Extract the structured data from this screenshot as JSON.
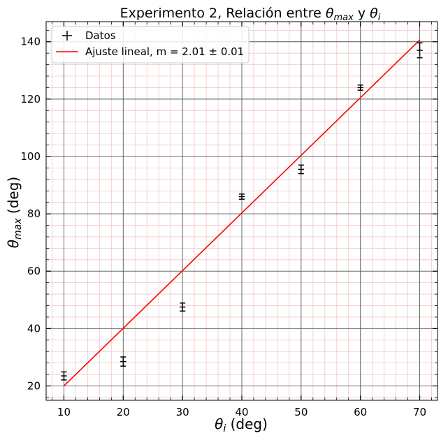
{
  "chart_data": {
    "type": "scatter",
    "title": {
      "prefix": "Experimento 2, Relación entre ",
      "sym1": "θ",
      "sub1": "max",
      "mid": " y ",
      "sym2": "θ",
      "sub2": "i"
    },
    "xlabel": {
      "sym": "θ",
      "sub": "i",
      "rest": " (deg)"
    },
    "ylabel": {
      "sym": "θ",
      "sub": "max",
      "rest": " (deg)"
    },
    "xlim": [
      7,
      73
    ],
    "ylim": [
      15,
      147
    ],
    "xticks": [
      10,
      20,
      30,
      40,
      50,
      60,
      70
    ],
    "yticks": [
      20,
      40,
      60,
      80,
      100,
      120,
      140
    ],
    "grid": {
      "major": true,
      "minor": true,
      "major_color": "#555555",
      "minor_color": "#f4c6c6"
    },
    "legend_position": "top-left",
    "series": [
      {
        "name": "Datos",
        "kind": "errorbar",
        "color": "#000000",
        "x": [
          10,
          20,
          30,
          40,
          50,
          60,
          70
        ],
        "y": [
          23.5,
          28.5,
          47.5,
          86,
          95.5,
          124,
          137
        ],
        "yerr": [
          1.4,
          1.6,
          1.4,
          0.9,
          1.5,
          0.9,
          2.6
        ],
        "xerr": [
          0.5,
          0.5,
          0.5,
          0.5,
          0.5,
          0.5,
          0.5
        ]
      },
      {
        "name": "Ajuste lineal, m = 2.01 ± 0.01",
        "kind": "line",
        "color": "#ff0000",
        "x": [
          10,
          70
        ],
        "y": [
          20,
          140.6
        ]
      }
    ]
  }
}
